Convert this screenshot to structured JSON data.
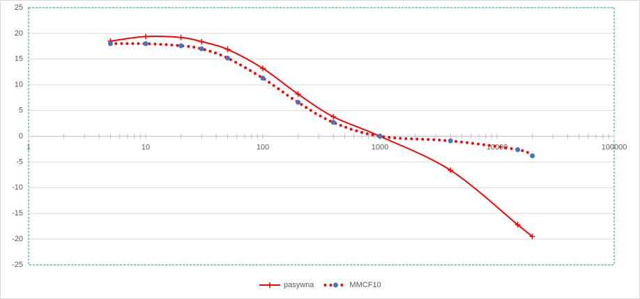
{
  "chart_data": {
    "type": "line",
    "x": [
      5,
      10,
      20,
      30,
      50,
      100,
      200,
      400,
      1000,
      4000,
      15000,
      20000
    ],
    "xscale": "log",
    "xlim": [
      1,
      100000
    ],
    "xticks": [
      1,
      10,
      100,
      1000,
      10000,
      100000
    ],
    "xminorticks": [
      2,
      3,
      4,
      5,
      6,
      7,
      8,
      9,
      20,
      30,
      40,
      50,
      60,
      70,
      80,
      90,
      200,
      300,
      400,
      500,
      600,
      700,
      800,
      900,
      2000,
      3000,
      4000,
      5000,
      6000,
      7000,
      8000,
      9000,
      20000,
      30000,
      40000,
      50000,
      60000,
      70000,
      80000,
      90000
    ],
    "ylim": [
      -25,
      25
    ],
    "yticks": [
      -25,
      -20,
      -15,
      -10,
      -5,
      0,
      5,
      10,
      15,
      20,
      25
    ],
    "grid": true,
    "legend": "bottom",
    "series": [
      {
        "name": "pasywna",
        "color": "#ff0000",
        "line": "solid",
        "marker": "plus",
        "marker_color": "#ff0000",
        "values": [
          18.5,
          19.4,
          19.2,
          18.4,
          16.9,
          13.2,
          8.2,
          3.8,
          0,
          -6.6,
          -17.2,
          -19.5
        ]
      },
      {
        "name": "MMCF10",
        "color": "#ff0000",
        "line": "dotted",
        "marker": "circle",
        "marker_color": "#4472c4",
        "values": [
          18,
          18,
          17.6,
          17,
          15.2,
          11.3,
          6.6,
          2.7,
          0,
          -0.9,
          -2.6,
          -3.8
        ]
      }
    ]
  }
}
